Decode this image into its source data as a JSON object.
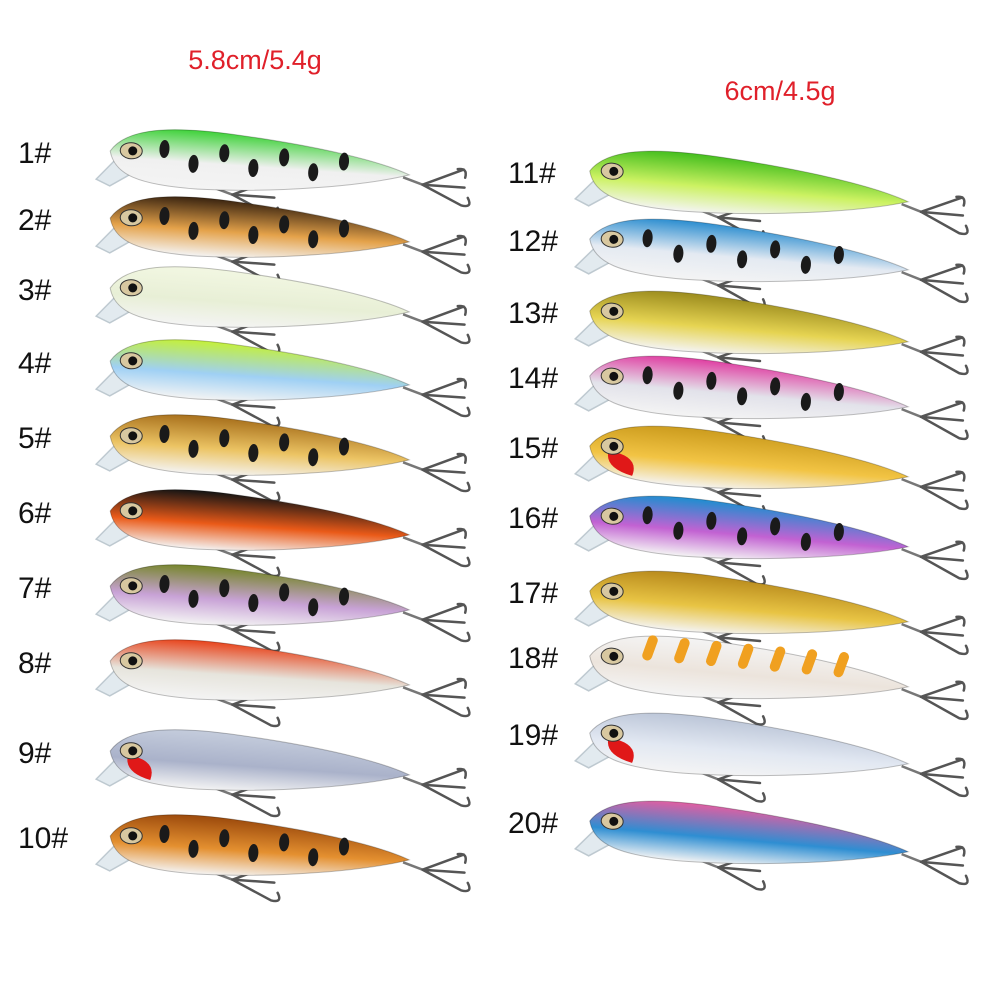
{
  "left_group": {
    "spec": "5.8cm/5.4g",
    "labels": [
      "1#",
      "2#",
      "3#",
      "4#",
      "5#",
      "6#",
      "7#",
      "8#",
      "9#",
      "10#"
    ]
  },
  "right_group": {
    "spec": "6cm/4.5g",
    "labels": [
      "11#",
      "12#",
      "13#",
      "14#",
      "15#",
      "16#",
      "17#",
      "18#",
      "19#",
      "20#"
    ]
  }
}
